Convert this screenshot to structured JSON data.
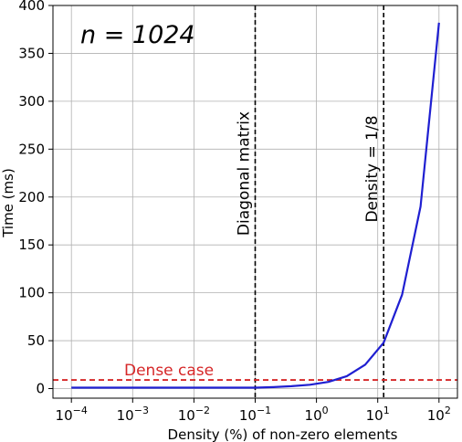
{
  "chart_data": {
    "type": "line",
    "title": "",
    "annotation": "n = 1024",
    "xlabel": "Density (%) of non-zero elements",
    "ylabel": "Time (ms)",
    "xscale": "log",
    "xlim": [
      5e-05,
      200
    ],
    "ylim": [
      -10,
      400
    ],
    "grid": true,
    "x_ticks": [
      {
        "value": 0.0001,
        "base": "10",
        "exp": "−4"
      },
      {
        "value": 0.001,
        "base": "10",
        "exp": "−3"
      },
      {
        "value": 0.01,
        "base": "10",
        "exp": "−2"
      },
      {
        "value": 0.1,
        "base": "10",
        "exp": "−1"
      },
      {
        "value": 1,
        "base": "10",
        "exp": "0"
      },
      {
        "value": 10,
        "base": "10",
        "exp": "1"
      },
      {
        "value": 100,
        "base": "10",
        "exp": "2"
      }
    ],
    "y_ticks": [
      0,
      50,
      100,
      150,
      200,
      250,
      300,
      350,
      400
    ],
    "series": [
      {
        "color": "#1f1fd1",
        "x": [
          0.0001,
          0.001,
          0.01,
          0.1,
          0.2,
          0.39,
          0.78,
          1.56,
          3.125,
          6.25,
          12.5,
          25,
          50,
          100
        ],
        "y": [
          1,
          1,
          1,
          1,
          1.5,
          2.5,
          4,
          7,
          13,
          25,
          48,
          98,
          190,
          382
        ]
      }
    ],
    "reference_lines": {
      "vertical": [
        {
          "x": 0.1,
          "label": "Diagonal matrix",
          "style": "dashed",
          "color": "#000000"
        },
        {
          "x": 12.5,
          "label": "Density = 1/8",
          "style": "dashed",
          "color": "#000000"
        }
      ],
      "horizontal": [
        {
          "y": 9,
          "label": "Dense case",
          "style": "dashed",
          "color": "#d62728"
        }
      ]
    }
  }
}
